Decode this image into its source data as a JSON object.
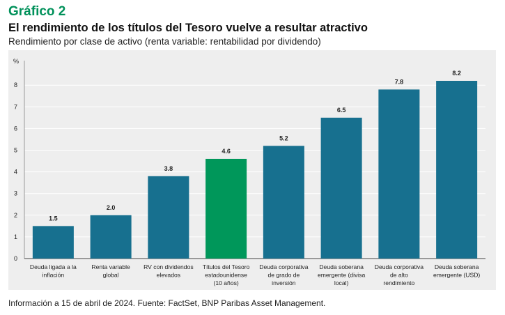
{
  "figure": {
    "label": "Gráfico 2",
    "title": "El rendimiento de los títulos del Tesoro vuelve a resultar atractivo",
    "subtitle": "Rendimiento por clase de activo (renta variable: rentabilidad por dividendo)",
    "source": "Información a 15 de abril de 2024.  Fuente: FactSet, BNP Paribas Asset Management."
  },
  "colors": {
    "bar": "#17708f",
    "highlight": "#00975a",
    "grid": "#ffffff",
    "panel": "#eeeeee"
  },
  "chart_data": {
    "type": "bar",
    "ylabel": "%",
    "ylim": [
      0,
      9
    ],
    "yticks": [
      0,
      1,
      2,
      3,
      4,
      5,
      6,
      7,
      8
    ],
    "grid": true,
    "categories": [
      [
        "Deuda ligada a la",
        "inflación"
      ],
      [
        "Renta variable",
        "global"
      ],
      [
        "RV con dividendos",
        "elevados"
      ],
      [
        "Títulos del Tesoro",
        "estadounidense",
        "(10 años)"
      ],
      [
        "Deuda corporativa",
        "de grado de",
        "inversión"
      ],
      [
        "Deuda soberana",
        "emergente (divisa",
        "local)"
      ],
      [
        "Deuda corporativa",
        "de alto",
        "rendimiento"
      ],
      [
        "Deuda soberana",
        "emergente (USD)"
      ]
    ],
    "values": [
      1.5,
      2.0,
      3.8,
      4.6,
      5.2,
      6.5,
      7.8,
      8.2
    ],
    "value_labels": [
      "1.5",
      "2.0",
      "3.8",
      "4.6",
      "5.2",
      "6.5",
      "7.8",
      "8.2"
    ],
    "highlight_index": 3
  }
}
